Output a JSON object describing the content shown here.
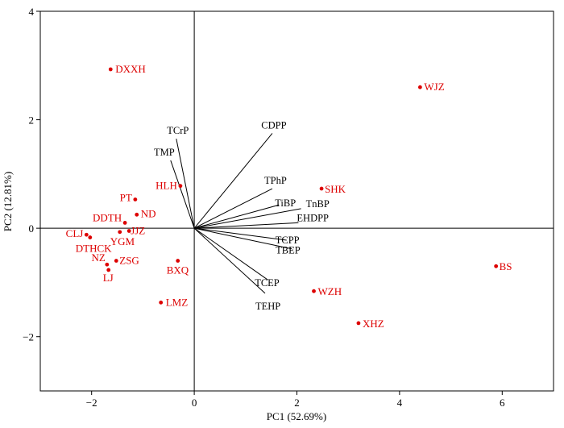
{
  "chart_data": {
    "type": "scatter",
    "subtype": "pca-biplot",
    "title": "",
    "xlabel": "PC1 (52.69%)",
    "ylabel": "PC2 (12.81%)",
    "xlim": [
      -3,
      7
    ],
    "ylim": [
      -3,
      4
    ],
    "xticks": [
      -2,
      0,
      2,
      4,
      6
    ],
    "yticks": [
      -2,
      0,
      2,
      4
    ],
    "grid": false,
    "reference_lines": {
      "x": 0,
      "y": 0
    },
    "score_color": "#dd0000",
    "loading_color": "#000000",
    "scores": [
      {
        "label": "DXXH",
        "x": -1.63,
        "y": 2.93
      },
      {
        "label": "WJZ",
        "x": 4.4,
        "y": 2.6
      },
      {
        "label": "HLH",
        "x": -0.27,
        "y": 0.78
      },
      {
        "label": "SHK",
        "x": 2.48,
        "y": 0.73
      },
      {
        "label": "PT",
        "x": -1.15,
        "y": 0.53
      },
      {
        "label": "ND",
        "x": -1.12,
        "y": 0.25
      },
      {
        "label": "DDTH",
        "x": -1.35,
        "y": 0.1
      },
      {
        "label": "JJZ",
        "x": -1.27,
        "y": -0.05
      },
      {
        "label": "CLJ",
        "x": -2.1,
        "y": -0.12
      },
      {
        "label": "YGM",
        "x": -1.45,
        "y": -0.07
      },
      {
        "label": "DTHCK",
        "x": -2.03,
        "y": -0.17
      },
      {
        "label": "NZ",
        "x": -1.7,
        "y": -0.67
      },
      {
        "label": "ZSG",
        "x": -1.52,
        "y": -0.6
      },
      {
        "label": "LJ",
        "x": -1.67,
        "y": -0.77
      },
      {
        "label": "BXQ",
        "x": -0.32,
        "y": -0.6
      },
      {
        "label": "LMZ",
        "x": -0.65,
        "y": -1.37
      },
      {
        "label": "BS",
        "x": 5.88,
        "y": -0.7
      },
      {
        "label": "WZH",
        "x": 2.33,
        "y": -1.16
      },
      {
        "label": "XHZ",
        "x": 3.2,
        "y": -1.75
      }
    ],
    "loadings": [
      {
        "label": "CDPP",
        "x": 1.52,
        "y": 1.75
      },
      {
        "label": "TCrP",
        "x": -0.35,
        "y": 1.65
      },
      {
        "label": "TMP",
        "x": -0.46,
        "y": 1.25
      },
      {
        "label": "TPhP",
        "x": 1.52,
        "y": 0.73
      },
      {
        "label": "TiBP",
        "x": 1.65,
        "y": 0.43
      },
      {
        "label": "TnBP",
        "x": 2.08,
        "y": 0.36
      },
      {
        "label": "EHDPP",
        "x": 2.03,
        "y": 0.1
      },
      {
        "label": "TCPP",
        "x": 1.8,
        "y": -0.22
      },
      {
        "label": "TBEP",
        "x": 1.9,
        "y": -0.38
      },
      {
        "label": "TCEP",
        "x": 1.43,
        "y": -0.95
      },
      {
        "label": "TEHP",
        "x": 1.38,
        "y": -1.2
      }
    ]
  }
}
